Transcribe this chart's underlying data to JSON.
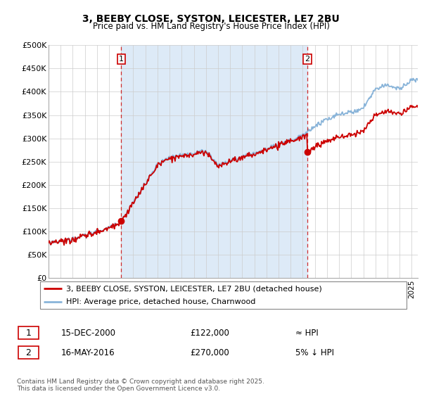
{
  "title_line1": "3, BEEBY CLOSE, SYSTON, LEICESTER, LE7 2BU",
  "title_line2": "Price paid vs. HM Land Registry's House Price Index (HPI)",
  "ylim": [
    0,
    500000
  ],
  "yticks": [
    0,
    50000,
    100000,
    150000,
    200000,
    250000,
    300000,
    350000,
    400000,
    450000,
    500000
  ],
  "ytick_labels": [
    "£0",
    "£50K",
    "£100K",
    "£150K",
    "£200K",
    "£250K",
    "£300K",
    "£350K",
    "£400K",
    "£450K",
    "£500K"
  ],
  "hpi_color": "#89b4d9",
  "hpi_fill_color": "#d9e8f5",
  "price_color": "#cc0000",
  "dashed_color": "#cc0000",
  "bg_fill_color": "#ddeaf7",
  "grid_color": "#cccccc",
  "sale1_year": 2001.0,
  "sale1_price": 122000,
  "sale2_year": 2016.37,
  "sale2_price": 270000,
  "legend_label_price": "3, BEEBY CLOSE, SYSTON, LEICESTER, LE7 2BU (detached house)",
  "legend_label_hpi": "HPI: Average price, detached house, Charnwood",
  "table_row1": [
    "1",
    "15-DEC-2000",
    "£122,000",
    "≈ HPI"
  ],
  "table_row2": [
    "2",
    "16-MAY-2016",
    "£270,000",
    "5% ↓ HPI"
  ],
  "footnote": "Contains HM Land Registry data © Crown copyright and database right 2025.\nThis data is licensed under the Open Government Licence v3.0.",
  "xmin": 1995,
  "xmax": 2025.5
}
